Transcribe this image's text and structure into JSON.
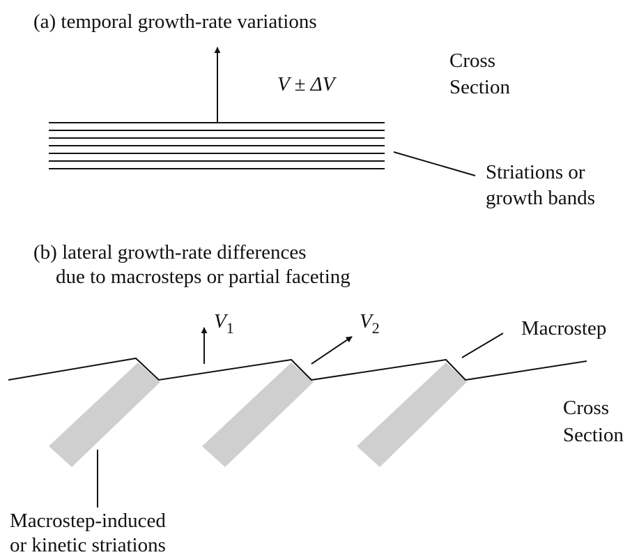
{
  "panel_a": {
    "title": "(a) temporal growth-rate variations",
    "velocity": {
      "symbol": "V ± ΔV"
    },
    "cross_section": [
      "Cross",
      "Section"
    ],
    "striations_label": [
      "Striations or",
      "growth bands"
    ]
  },
  "panel_b": {
    "title": [
      "(b) lateral growth-rate differences",
      "due to macrosteps or partial faceting"
    ],
    "v1": {
      "symbol": "V",
      "subscript": "1"
    },
    "v2": {
      "symbol": "V",
      "subscript": "2"
    },
    "macrostep_label": "Macrostep",
    "cross_section": [
      "Cross",
      "Section"
    ],
    "striations_label": [
      "Macrostep-induced",
      "or kinetic striations"
    ]
  }
}
